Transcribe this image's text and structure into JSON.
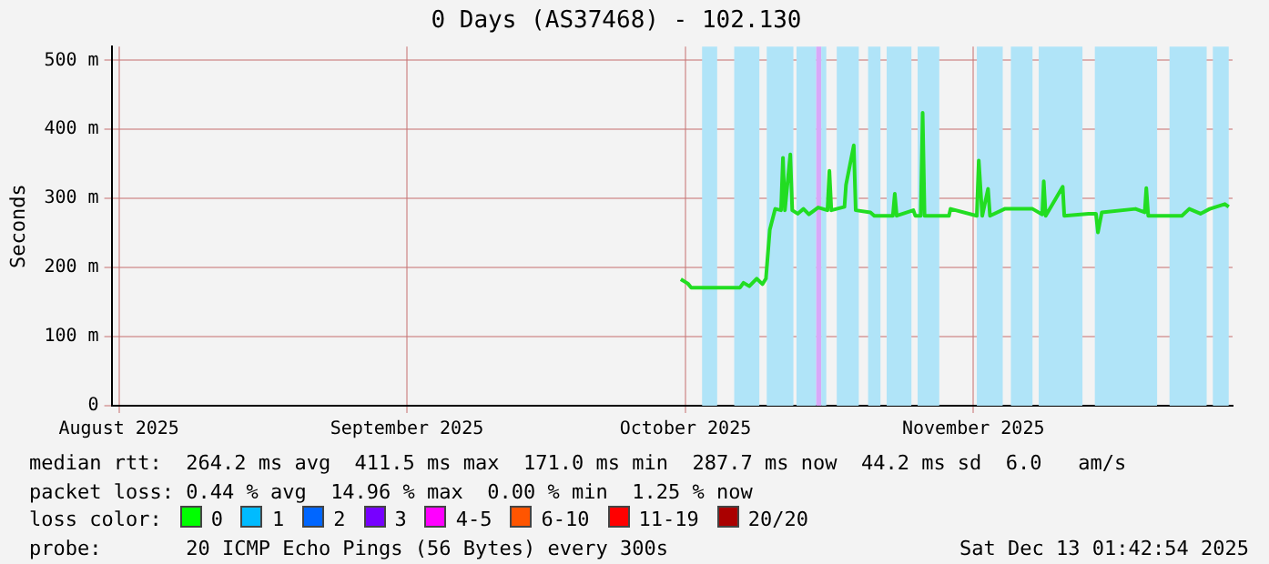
{
  "chart_data": {
    "type": "line",
    "title": "0 Days (AS37468) - 102.130",
    "ylabel": "Seconds",
    "x": [
      "2025-09-30T12:00",
      "2025-10-01T06:00",
      "2025-10-01T15:00",
      "2025-10-06T21:00",
      "2025-10-07T06:00",
      "2025-10-07T21:00",
      "2025-10-08T16:00",
      "2025-10-09T07:00",
      "2025-10-09T16:00",
      "2025-10-10T02:00",
      "2025-10-10T16:00",
      "2025-10-11T07:00",
      "2025-10-11T12:00",
      "2025-10-11T17:00",
      "2025-10-12T07:00",
      "2025-10-12T12:00",
      "2025-10-13T02:00",
      "2025-10-13T17:00",
      "2025-10-14T07:00",
      "2025-10-15T07:00",
      "2025-10-16T07:00",
      "2025-10-16T12:00",
      "2025-10-16T17:00",
      "2025-10-18T03:00",
      "2025-10-18T07:00",
      "2025-10-19T03:00",
      "2025-10-19T08:00",
      "2025-10-20T22:00",
      "2025-10-21T08:00",
      "2025-10-23T08:00",
      "2025-10-23T13:00",
      "2025-10-23T18:00",
      "2025-10-25T13:00",
      "2025-10-25T18:00",
      "2025-10-26T08:00",
      "2025-10-26T13:00",
      "2025-10-26T18:00",
      "2025-10-29T09:00",
      "2025-10-29T13:00",
      "2025-11-01T09:00",
      "2025-11-01T14:00",
      "2025-11-01T23:00",
      "2025-11-02T14:00",
      "2025-11-02T19:00",
      "2025-11-04T09:00",
      "2025-11-07T09:00",
      "2025-11-08T10:00",
      "2025-11-08T14:00",
      "2025-11-08T19:00",
      "2025-11-10T15:00",
      "2025-11-10T19:00",
      "2025-11-13T10:00",
      "2025-11-14T05:00",
      "2025-11-14T10:00",
      "2025-11-14T20:00",
      "2025-11-18T11:00",
      "2025-11-19T11:00",
      "2025-11-19T15:00",
      "2025-11-19T20:00",
      "2025-11-23T11:00",
      "2025-11-24T06:00",
      "2025-11-25T11:00",
      "2025-11-26T11:00",
      "2025-11-28T02:00",
      "2025-11-28T12:00"
    ],
    "series": [
      {
        "color": "#22dd22",
        "values": [
          183,
          177,
          171,
          171,
          178,
          173,
          184,
          176,
          184,
          255,
          285,
          283,
          359,
          283,
          364,
          283,
          278,
          285,
          277,
          287,
          283,
          340,
          283,
          288,
          320,
          377,
          283,
          280,
          275,
          275,
          307,
          275,
          283,
          275,
          275,
          424,
          275,
          275,
          285,
          275,
          355,
          275,
          314,
          275,
          285,
          285,
          277,
          325,
          275,
          317,
          275,
          278,
          278,
          251,
          280,
          285,
          280,
          315,
          275,
          275,
          285,
          278,
          285,
          292,
          288
        ]
      }
    ],
    "xlim": [
      "2025-07-31T05:00",
      "2025-11-28T22:00"
    ],
    "xticks": [
      {
        "value": "2025-08-01",
        "label": "August 2025"
      },
      {
        "value": "2025-09-01",
        "label": "September 2025"
      },
      {
        "value": "2025-10-01",
        "label": "October 2025"
      },
      {
        "value": "2025-11-01",
        "label": "November 2025"
      }
    ],
    "ylim": [
      0,
      520
    ],
    "yticks": [
      0,
      {
        "value": 100,
        "label": "100 m"
      },
      {
        "value": 200,
        "label": "200 m"
      },
      {
        "value": 300,
        "label": "300 m"
      },
      {
        "value": 400,
        "label": "400 m"
      },
      {
        "value": 500,
        "label": "500 m"
      }
    ],
    "grid": true,
    "legend": false,
    "marker": "none",
    "line_style": "solid",
    "bands": [
      {
        "axis": "x",
        "from": "2025-10-02T19:00",
        "to": "2025-10-04T10:00",
        "color": "#b0e4f8"
      },
      {
        "axis": "x",
        "from": "2025-10-06T06:00",
        "to": "2025-10-08T23:00",
        "color": "#b0e4f8"
      },
      {
        "axis": "x",
        "from": "2025-10-09T18:00",
        "to": "2025-10-12T15:00",
        "color": "#b0e4f8"
      },
      {
        "axis": "x",
        "from": "2025-10-12T23:00",
        "to": "2025-10-15T02:00",
        "color": "#b0e4f8"
      },
      {
        "axis": "x",
        "from": "2025-10-15T02:00",
        "to": "2025-10-15T15:00",
        "color": "#d8a8f8"
      },
      {
        "axis": "x",
        "from": "2025-10-15T15:00",
        "to": "2025-10-16T04:00",
        "color": "#b0e4f8"
      },
      {
        "axis": "x",
        "from": "2025-10-17T07:00",
        "to": "2025-10-19T16:00",
        "color": "#b0e4f8"
      },
      {
        "axis": "x",
        "from": "2025-10-20T16:00",
        "to": "2025-10-22T00:00",
        "color": "#b0e4f8"
      },
      {
        "axis": "x",
        "from": "2025-10-22T16:00",
        "to": "2025-10-25T08:00",
        "color": "#b0e4f8"
      },
      {
        "axis": "x",
        "from": "2025-10-26T00:00",
        "to": "2025-10-28T08:00",
        "color": "#b0e4f8"
      },
      {
        "axis": "x",
        "from": "2025-11-01T09:00",
        "to": "2025-11-04T04:00",
        "color": "#b0e4f8"
      },
      {
        "axis": "x",
        "from": "2025-11-05T01:00",
        "to": "2025-11-07T09:00",
        "color": "#b0e4f8"
      },
      {
        "axis": "x",
        "from": "2025-11-08T01:00",
        "to": "2025-11-12T18:00",
        "color": "#b0e4f8"
      },
      {
        "axis": "x",
        "from": "2025-11-14T02:00",
        "to": "2025-11-20T19:00",
        "color": "#b0e4f8"
      },
      {
        "axis": "x",
        "from": "2025-11-22T03:00",
        "to": "2025-11-26T03:00",
        "color": "#b0e4f8"
      },
      {
        "axis": "x",
        "from": "2025-11-26T19:00",
        "to": "2025-11-28T12:00",
        "color": "#b0e4f8"
      }
    ],
    "annotations": [
      "median rtt:  264.2 ms avg  411.5 ms max  171.0 ms min  287.7 ms now  44.2 ms sd  6.0   am/s",
      "packet loss: 0.44 % avg  14.96 % max  0.00 % min  1.25 % now",
      "loss color:",
      "0",
      "1",
      "2",
      "3",
      "4-5",
      "6-10",
      "11-19",
      "20/20",
      "probe:       20 ICMP Echo Pings (56 Bytes) every 300s",
      "Sat Dec 13 01:42:54 2025"
    ]
  }
}
